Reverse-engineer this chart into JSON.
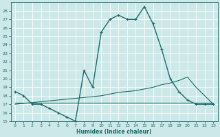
{
  "xlabel": "Humidex (Indice chaleur)",
  "background_color": "#cce8e8",
  "grid_color": "#b0d0d0",
  "line_color": "#1a6b6b",
  "xlim": [
    -0.5,
    23.5
  ],
  "ylim": [
    15,
    29
  ],
  "yticks": [
    15,
    16,
    17,
    18,
    19,
    20,
    21,
    22,
    23,
    24,
    25,
    26,
    27,
    28
  ],
  "xticks": [
    0,
    1,
    2,
    3,
    4,
    5,
    6,
    7,
    8,
    9,
    10,
    11,
    12,
    13,
    14,
    15,
    16,
    17,
    18,
    19,
    20,
    21,
    22,
    23
  ],
  "series": [
    {
      "x": [
        0,
        1,
        2,
        3,
        4,
        5,
        6,
        7,
        8,
        9,
        10,
        11,
        12,
        13,
        14,
        15,
        16,
        17,
        18,
        19,
        20,
        21,
        22,
        23
      ],
      "y": [
        18.5,
        18.0,
        17.0,
        17.0,
        16.5,
        16.0,
        15.5,
        15.0,
        21.0,
        19.0,
        25.5,
        27.0,
        27.5,
        27.0,
        27.0,
        28.5,
        26.5,
        23.5,
        20.0,
        18.5,
        17.5,
        17.0,
        17.0,
        17.0
      ],
      "color": "#1a6b6b",
      "linewidth": 1.0,
      "marker": "+"
    },
    {
      "x": [
        0,
        1,
        2,
        3,
        4,
        5,
        6,
        7,
        8,
        9,
        10,
        11,
        12,
        13,
        14,
        15,
        16,
        17,
        18,
        19,
        20,
        21,
        22,
        23
      ],
      "y": [
        17.0,
        17.1,
        17.2,
        17.3,
        17.4,
        17.5,
        17.6,
        17.7,
        17.8,
        17.9,
        18.0,
        18.2,
        18.4,
        18.5,
        18.6,
        18.8,
        19.0,
        19.3,
        19.5,
        19.8,
        20.2,
        19.0,
        18.0,
        17.0
      ],
      "color": "#1a6b6b",
      "linewidth": 0.8,
      "marker": null
    },
    {
      "x": [
        0,
        1,
        2,
        3,
        4,
        5,
        6,
        7,
        8,
        9,
        10,
        11,
        12,
        13,
        14,
        15,
        16,
        17,
        18,
        19,
        20,
        21,
        22,
        23
      ],
      "y": [
        17.2,
        17.2,
        17.2,
        17.2,
        17.2,
        17.2,
        17.2,
        17.2,
        17.2,
        17.2,
        17.2,
        17.2,
        17.2,
        17.2,
        17.2,
        17.2,
        17.2,
        17.2,
        17.2,
        17.2,
        17.2,
        17.2,
        17.2,
        17.2
      ],
      "color": "#1a6b6b",
      "linewidth": 0.8,
      "marker": null
    }
  ]
}
